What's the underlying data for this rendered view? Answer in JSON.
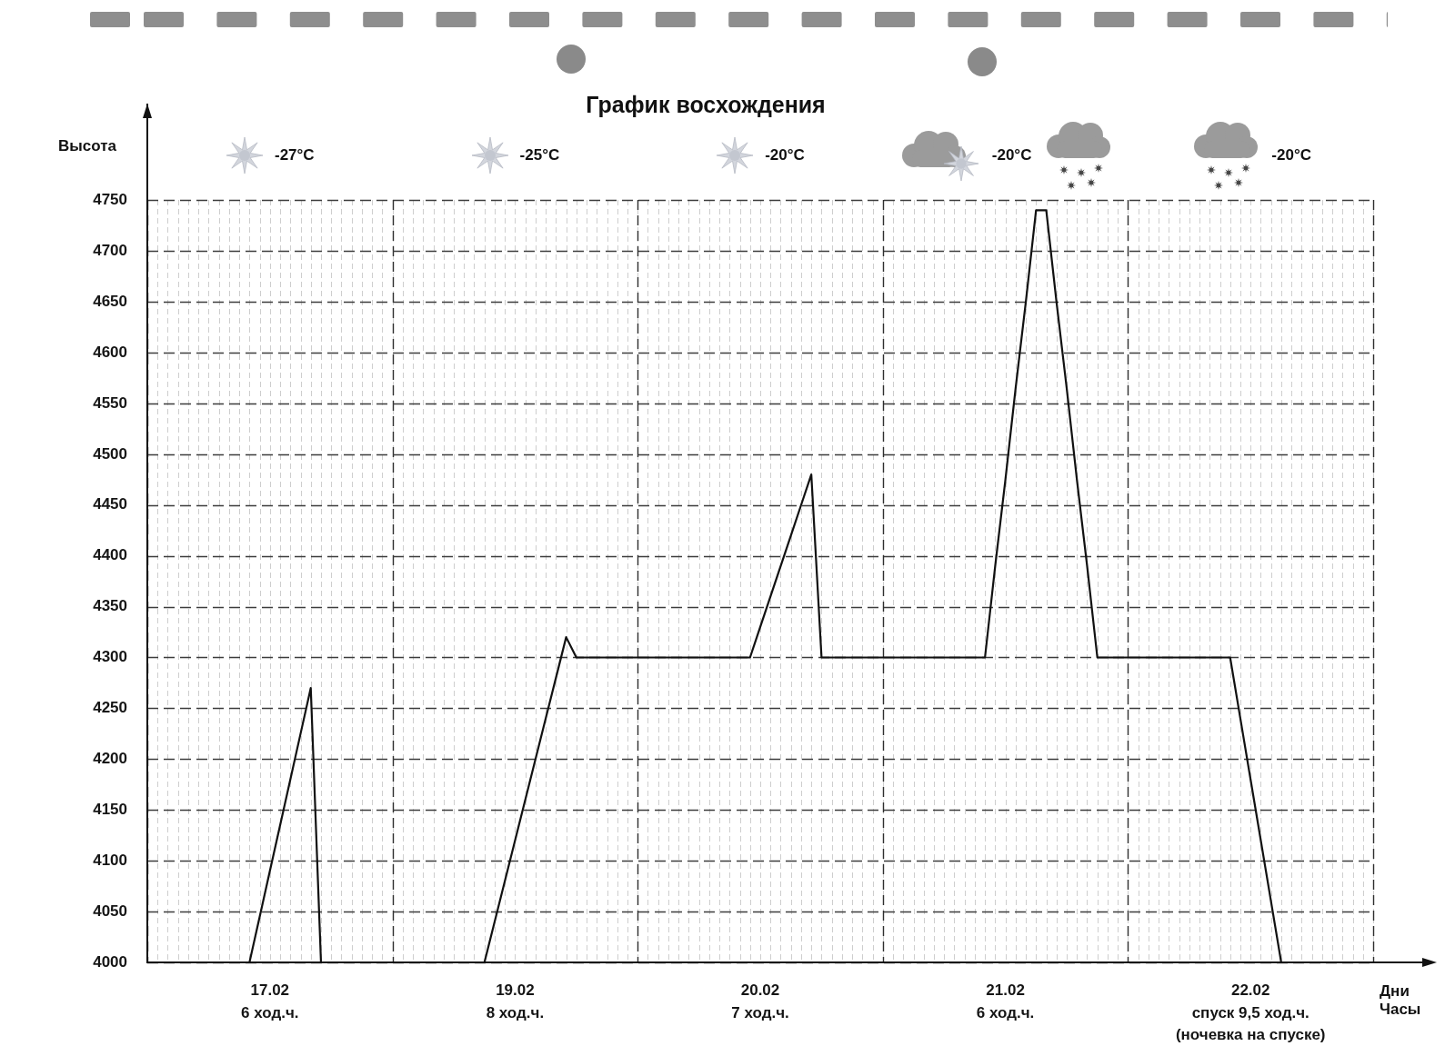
{
  "chart_data": {
    "type": "line",
    "title": "График восхождения",
    "xlabel": "Дни\nЧасы",
    "ylabel": "Высота",
    "categories": [
      null,
      null,
      null,
      null,
      null,
      null,
      null,
      null,
      null,
      null,
      null,
      null,
      "17.02\n6 ход.ч.",
      null,
      null,
      null,
      null,
      null,
      null,
      null,
      null,
      null,
      null,
      null,
      null,
      null,
      null,
      null,
      null,
      null,
      null,
      null,
      null,
      null,
      null,
      null,
      "19.02\n8 ход.ч.",
      null,
      null,
      null,
      null,
      null,
      null,
      null,
      null,
      null,
      null,
      null,
      null,
      null,
      null,
      null,
      null,
      null,
      null,
      null,
      null,
      null,
      null,
      null,
      "20.02\n7 ход.ч.",
      null,
      null,
      null,
      null,
      null,
      null,
      null,
      null,
      null,
      null,
      null,
      null,
      null,
      null,
      null,
      null,
      null,
      null,
      null,
      null,
      null,
      null,
      null,
      "21.02\n6 ход.ч.",
      null,
      null,
      null,
      null,
      null,
      null,
      null,
      null,
      null,
      null,
      null,
      null,
      null,
      null,
      null,
      null,
      null,
      null,
      null,
      null,
      null,
      null,
      null,
      "22.02\nспуск 9,5 ход.ч.\n(ночевка на спуске)",
      null,
      null,
      null,
      null,
      null,
      null,
      null,
      null,
      null,
      null,
      null,
      null
    ],
    "values": [
      null,
      null,
      null,
      null,
      null,
      null,
      null,
      null,
      null,
      null,
      4000,
      4045,
      4090,
      4135,
      4180,
      4225,
      4270,
      4000,
      null,
      null,
      null,
      null,
      null,
      null,
      null,
      null,
      null,
      null,
      null,
      null,
      null,
      null,
      null,
      4000,
      4040,
      4080,
      4120,
      4160,
      4200,
      4240,
      4280,
      4320,
      4300,
      4300,
      4300,
      4300,
      4300,
      4300,
      4300,
      4300,
      4300,
      4300,
      4300,
      4300,
      4300,
      4300,
      4300,
      4300,
      4300,
      4300,
      4330,
      4360,
      4390,
      4420,
      4450,
      4480,
      4300,
      4300,
      4300,
      4300,
      4300,
      4300,
      4300,
      4300,
      4300,
      4300,
      4300,
      4300,
      4300,
      4300,
      4300,
      4300,
      4300,
      4390,
      4475,
      4565,
      4650,
      4740,
      4740,
      4650,
      4565,
      4475,
      4390,
      4300,
      4300,
      4300,
      4300,
      4300,
      4300,
      4300,
      4300,
      4300,
      4300,
      4300,
      4300,
      4300,
      4300,
      4240,
      4180,
      4120,
      4060,
      4000,
      null,
      null,
      null,
      null,
      null,
      null,
      null,
      null,
      null
    ],
    "color": "#111111",
    "marker": "none",
    "line_style": "solid",
    "ylim": [
      4000,
      4845
    ],
    "yticks": [
      4000,
      4050,
      4100,
      4150,
      4200,
      4250,
      4300,
      4350,
      4400,
      4450,
      4500,
      4550,
      4600,
      4650,
      4700,
      4750
    ],
    "grid": true,
    "annotations": [
      "-27°C",
      "-25°C",
      "-20°C",
      "-20°C",
      "-20°C"
    ]
  }
}
